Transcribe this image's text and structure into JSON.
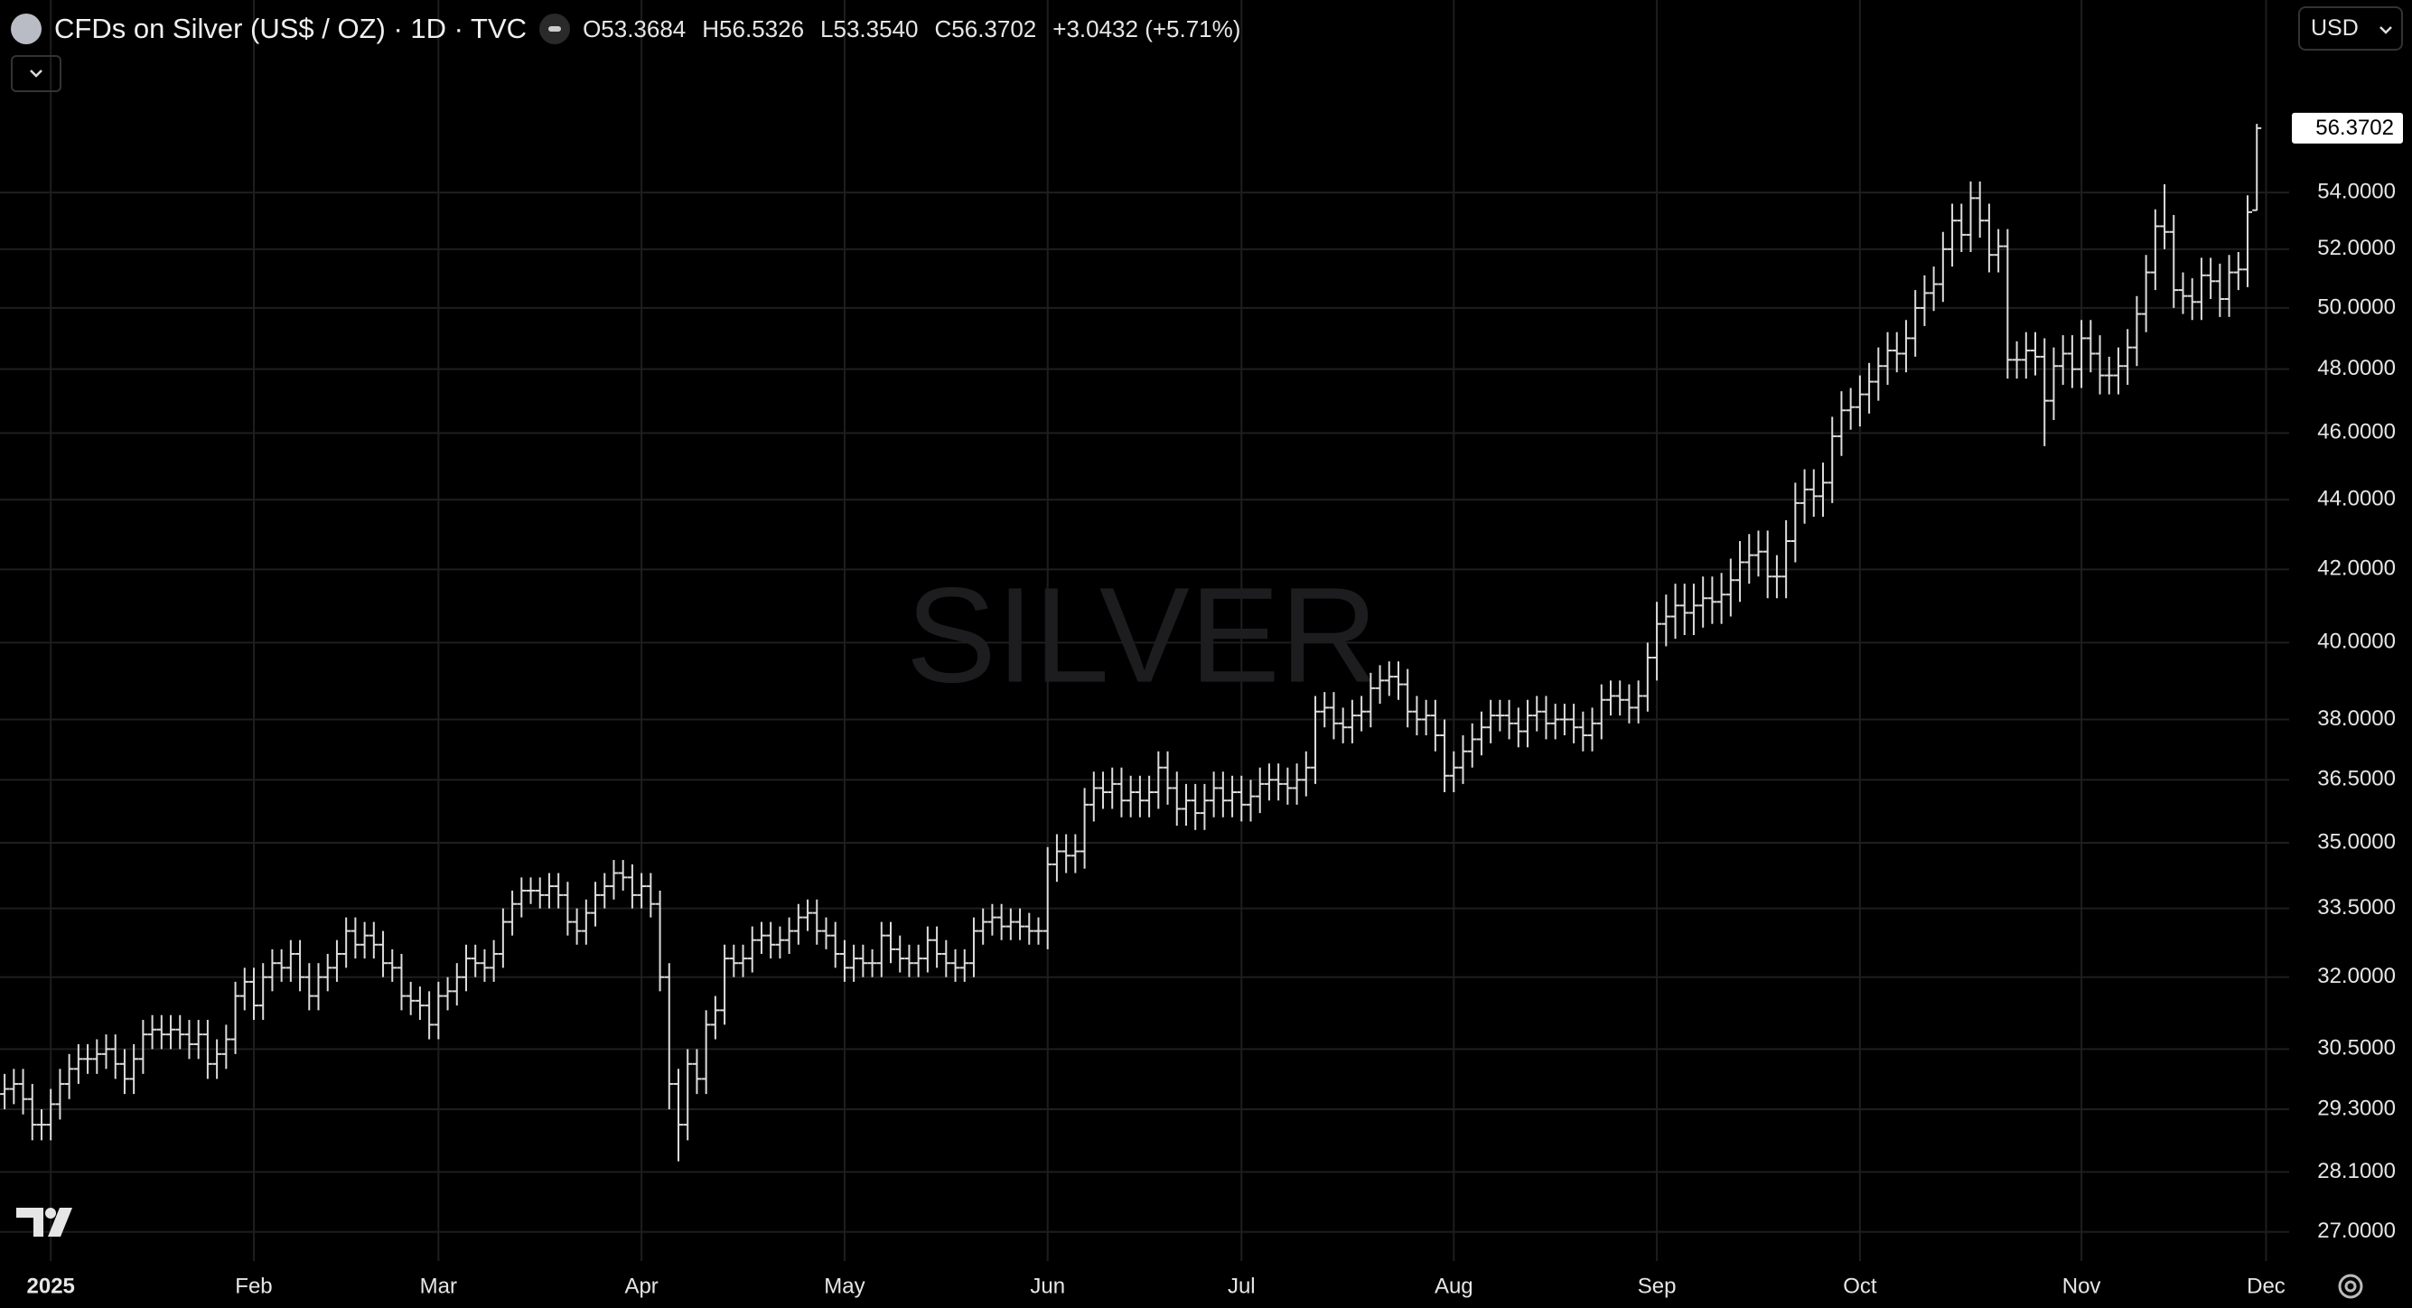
{
  "header": {
    "title": "CFDs on Silver (US$ / OZ) · 1D · TVC",
    "ohlc": [
      "O53.3684",
      "H56.5326",
      "L53.3540",
      "C56.3702"
    ],
    "change": "+3.0432 (+5.71%)",
    "currency": "USD"
  },
  "chart_data": {
    "type": "ohlc",
    "watermark": "SILVER",
    "color": "#dcdcdc",
    "grid": true,
    "log_scale": true,
    "xlim": [
      -0.5,
      247.5
    ],
    "xticks": [
      {
        "value": 5,
        "label": "2025"
      },
      {
        "value": 27,
        "label": "Feb"
      },
      {
        "value": 47,
        "label": "Mar"
      },
      {
        "value": 69,
        "label": "Apr"
      },
      {
        "value": 91,
        "label": "May"
      },
      {
        "value": 113,
        "label": "Jun"
      },
      {
        "value": 134,
        "label": "Jul"
      },
      {
        "value": 157,
        "label": "Aug"
      },
      {
        "value": 179,
        "label": "Sep"
      },
      {
        "value": 201,
        "label": "Oct"
      },
      {
        "value": 225,
        "label": "Nov"
      },
      {
        "value": 245,
        "label": "Dec"
      }
    ],
    "ylim": [
      26.48,
      61.4
    ],
    "yticks": [
      {
        "value": 27,
        "label": "27.0000"
      },
      {
        "value": 28.1,
        "label": "28.1000"
      },
      {
        "value": 29.3,
        "label": "29.3000"
      },
      {
        "value": 30.5,
        "label": "30.5000"
      },
      {
        "value": 32,
        "label": "32.0000"
      },
      {
        "value": 33.5,
        "label": "33.5000"
      },
      {
        "value": 35,
        "label": "35.0000"
      },
      {
        "value": 36.5,
        "label": "36.5000"
      },
      {
        "value": 38,
        "label": "38.0000"
      },
      {
        "value": 40,
        "label": "40.0000"
      },
      {
        "value": 42,
        "label": "42.0000"
      },
      {
        "value": 44,
        "label": "44.0000"
      },
      {
        "value": 46,
        "label": "46.0000"
      },
      {
        "value": 48,
        "label": "48.0000"
      },
      {
        "value": 50,
        "label": "50.0000"
      },
      {
        "value": 52,
        "label": "52.0000"
      },
      {
        "value": 54,
        "label": "54.0000"
      }
    ],
    "open": [
      29.6,
      29.7,
      29.8,
      29.5,
      29.0,
      29.0,
      29.4,
      29.8,
      30.1,
      30.3,
      30.3,
      30.4,
      30.5,
      30.2,
      29.9,
      30.3,
      30.8,
      30.9,
      30.8,
      30.9,
      30.8,
      30.6,
      30.8,
      30.2,
      30.4,
      30.7,
      31.6,
      31.9,
      31.4,
      32.0,
      32.3,
      32.2,
      32.5,
      32.0,
      31.6,
      32.0,
      32.2,
      32.5,
      33.0,
      32.7,
      32.9,
      32.7,
      32.3,
      32.2,
      31.6,
      31.5,
      31.4,
      31.0,
      31.6,
      31.7,
      32.0,
      32.4,
      32.3,
      32.2,
      32.5,
      33.2,
      33.6,
      33.9,
      33.9,
      33.8,
      34.0,
      33.8,
      33.2,
      33.0,
      33.4,
      33.8,
      34.0,
      34.3,
      34.2,
      33.8,
      34.0,
      33.6,
      32.0,
      29.8,
      29.0,
      30.2,
      29.9,
      31.0,
      31.3,
      32.4,
      32.3,
      32.4,
      32.8,
      32.9,
      32.7,
      32.8,
      33.0,
      33.3,
      33.4,
      33.0,
      32.9,
      32.5,
      32.2,
      32.4,
      32.3,
      32.3,
      32.9,
      32.6,
      32.4,
      32.3,
      32.4,
      32.8,
      32.5,
      32.3,
      32.2,
      32.3,
      33.0,
      33.2,
      33.3,
      33.1,
      33.2,
      33.1,
      33.0,
      33.0,
      34.5,
      34.8,
      34.7,
      34.8,
      35.9,
      36.3,
      36.2,
      36.4,
      36.0,
      36.2,
      36.0,
      36.2,
      36.8,
      36.3,
      35.8,
      36.0,
      35.7,
      36.0,
      36.3,
      36.0,
      36.2,
      35.9,
      36.1,
      36.4,
      36.5,
      36.4,
      36.3,
      36.5,
      36.8,
      38.2,
      38.3,
      37.9,
      37.8,
      38.1,
      38.2,
      38.8,
      39.0,
      39.1,
      38.9,
      38.2,
      38.0,
      38.1,
      37.6,
      36.6,
      36.8,
      37.2,
      37.5,
      37.8,
      38.1,
      38.1,
      37.9,
      37.7,
      38.1,
      38.2,
      37.9,
      38.0,
      38.0,
      37.8,
      37.6,
      37.9,
      38.5,
      38.6,
      38.5,
      38.3,
      38.6,
      39.6,
      40.5,
      40.7,
      41.0,
      40.8,
      41.0,
      41.2,
      41.1,
      41.3,
      41.7,
      42.2,
      42.4,
      42.5,
      41.8,
      41.8,
      42.8,
      43.9,
      44.3,
      44.1,
      44.5,
      45.9,
      46.7,
      46.8,
      47.2,
      47.6,
      48.1,
      48.6,
      48.5,
      49.0,
      50.0,
      50.5,
      50.8,
      52.0,
      53.0,
      52.5,
      53.8,
      53.0,
      51.8,
      52.1,
      48.3,
      48.3,
      48.6,
      48.4,
      47.0,
      48.1,
      48.5,
      48.0,
      49.0,
      48.5,
      47.8,
      47.8,
      48.1,
      48.7,
      49.8,
      51.2,
      52.8,
      52.6,
      50.6,
      50.4,
      50.2,
      51.1,
      50.9,
      50.3,
      51.2,
      51.3,
      53.3684
    ],
    "high": [
      30.0,
      30.1,
      30.1,
      29.8,
      29.3,
      29.7,
      30.1,
      30.4,
      30.6,
      30.6,
      30.7,
      30.8,
      30.8,
      30.5,
      30.6,
      31.1,
      31.2,
      31.2,
      31.2,
      31.2,
      31.1,
      31.1,
      31.1,
      30.7,
      31.0,
      31.9,
      32.2,
      32.2,
      32.3,
      32.6,
      32.6,
      32.8,
      32.8,
      32.3,
      32.3,
      32.5,
      32.8,
      33.3,
      33.3,
      33.2,
      33.2,
      33.0,
      32.6,
      32.5,
      31.9,
      31.8,
      31.7,
      31.9,
      32.0,
      32.3,
      32.7,
      32.7,
      32.6,
      32.8,
      33.5,
      33.9,
      34.2,
      34.2,
      34.2,
      34.3,
      34.3,
      34.1,
      33.5,
      33.7,
      34.1,
      34.3,
      34.6,
      34.6,
      34.5,
      34.3,
      34.3,
      33.9,
      32.3,
      30.1,
      30.5,
      30.5,
      31.3,
      31.6,
      32.7,
      32.7,
      32.7,
      33.1,
      33.2,
      33.2,
      33.1,
      33.3,
      33.6,
      33.7,
      33.7,
      33.3,
      33.2,
      32.8,
      32.7,
      32.7,
      32.6,
      33.2,
      33.2,
      32.9,
      32.7,
      32.7,
      33.1,
      33.1,
      32.8,
      32.6,
      32.6,
      33.3,
      33.5,
      33.6,
      33.6,
      33.5,
      33.5,
      33.4,
      33.3,
      34.9,
      35.2,
      35.2,
      35.2,
      36.3,
      36.7,
      36.7,
      36.8,
      36.8,
      36.6,
      36.6,
      36.6,
      37.2,
      37.2,
      36.7,
      36.4,
      36.4,
      36.4,
      36.7,
      36.7,
      36.6,
      36.6,
      36.5,
      36.8,
      36.9,
      36.9,
      36.8,
      36.9,
      37.2,
      38.6,
      38.7,
      38.7,
      38.3,
      38.5,
      38.6,
      39.2,
      39.4,
      39.5,
      39.5,
      39.3,
      38.6,
      38.5,
      38.5,
      38.0,
      37.2,
      37.6,
      37.9,
      38.2,
      38.5,
      38.5,
      38.5,
      38.3,
      38.5,
      38.6,
      38.6,
      38.4,
      38.4,
      38.4,
      38.2,
      38.3,
      38.9,
      39.0,
      39.0,
      38.9,
      39.0,
      40.0,
      41.1,
      41.3,
      41.6,
      41.6,
      41.6,
      41.8,
      41.8,
      41.9,
      42.3,
      42.8,
      43.0,
      43.1,
      43.1,
      42.4,
      43.4,
      44.5,
      44.9,
      44.9,
      45.1,
      46.5,
      47.3,
      47.4,
      47.8,
      48.2,
      48.7,
      49.2,
      49.2,
      49.6,
      50.6,
      51.1,
      51.4,
      52.6,
      53.6,
      53.6,
      54.4,
      54.4,
      53.6,
      52.7,
      52.7,
      48.9,
      49.2,
      49.2,
      49.0,
      48.7,
      49.1,
      49.1,
      49.6,
      49.6,
      49.1,
      48.4,
      48.7,
      49.3,
      50.4,
      51.8,
      53.4,
      54.3,
      53.2,
      51.2,
      51.0,
      51.7,
      51.7,
      51.5,
      51.8,
      51.9,
      53.9,
      56.5326
    ],
    "low": [
      29.3,
      29.4,
      29.2,
      28.7,
      28.7,
      28.7,
      29.1,
      29.5,
      29.8,
      30.0,
      30.0,
      30.1,
      29.9,
      29.6,
      29.6,
      30.0,
      30.5,
      30.5,
      30.5,
      30.5,
      30.3,
      30.3,
      29.9,
      29.9,
      30.1,
      30.4,
      31.3,
      31.1,
      31.1,
      31.7,
      31.9,
      31.9,
      31.7,
      31.3,
      31.3,
      31.7,
      31.9,
      32.2,
      32.4,
      32.4,
      32.4,
      32.0,
      31.9,
      31.3,
      31.2,
      31.1,
      30.7,
      30.7,
      31.3,
      31.4,
      31.7,
      32.0,
      31.9,
      31.9,
      32.2,
      32.9,
      33.3,
      33.6,
      33.5,
      33.5,
      33.5,
      32.9,
      32.7,
      32.7,
      33.1,
      33.5,
      33.7,
      33.9,
      33.5,
      33.5,
      33.3,
      31.7,
      29.3,
      28.3,
      28.7,
      29.6,
      29.6,
      30.7,
      31.0,
      32.0,
      32.0,
      32.1,
      32.5,
      32.4,
      32.4,
      32.5,
      32.7,
      33.0,
      32.7,
      32.6,
      32.2,
      31.9,
      31.9,
      32.0,
      32.0,
      32.0,
      32.3,
      32.1,
      32.0,
      32.0,
      32.1,
      32.2,
      32.0,
      31.9,
      31.9,
      32.0,
      32.7,
      32.9,
      32.8,
      32.8,
      32.8,
      32.7,
      32.7,
      32.6,
      34.1,
      34.3,
      34.3,
      34.4,
      35.5,
      35.8,
      35.8,
      35.6,
      35.6,
      35.6,
      35.6,
      35.8,
      35.9,
      35.4,
      35.4,
      35.3,
      35.3,
      35.6,
      35.6,
      35.6,
      35.5,
      35.5,
      35.7,
      36.0,
      36.0,
      35.9,
      35.9,
      36.1,
      36.4,
      37.8,
      37.5,
      37.4,
      37.4,
      37.7,
      37.8,
      38.4,
      38.6,
      38.5,
      37.8,
      37.6,
      37.6,
      37.2,
      36.2,
      36.2,
      36.4,
      36.8,
      37.1,
      37.4,
      37.7,
      37.5,
      37.3,
      37.3,
      37.7,
      37.5,
      37.5,
      37.6,
      37.4,
      37.2,
      37.2,
      37.5,
      38.1,
      38.1,
      37.9,
      37.9,
      38.2,
      39.0,
      39.9,
      40.1,
      40.2,
      40.2,
      40.4,
      40.5,
      40.5,
      40.7,
      41.1,
      41.6,
      41.8,
      41.2,
      41.2,
      41.2,
      42.2,
      43.3,
      43.5,
      43.5,
      43.9,
      45.3,
      46.1,
      46.2,
      46.6,
      47.0,
      47.5,
      47.9,
      47.9,
      48.4,
      49.4,
      49.9,
      50.2,
      51.4,
      51.9,
      51.9,
      52.4,
      51.2,
      51.2,
      47.7,
      47.7,
      47.7,
      47.8,
      45.6,
      46.4,
      47.5,
      47.4,
      47.4,
      47.9,
      47.2,
      47.2,
      47.2,
      47.5,
      48.1,
      49.2,
      50.6,
      52.0,
      50.0,
      49.8,
      49.6,
      49.6,
      50.3,
      49.7,
      49.7,
      50.6,
      50.7,
      53.354
    ],
    "close": [
      29.7,
      29.8,
      29.5,
      29.0,
      29.0,
      29.4,
      29.8,
      30.1,
      30.3,
      30.3,
      30.4,
      30.5,
      30.2,
      29.9,
      30.3,
      30.8,
      30.9,
      30.8,
      30.9,
      30.8,
      30.6,
      30.8,
      30.2,
      30.4,
      30.7,
      31.6,
      31.9,
      31.4,
      32.0,
      32.3,
      32.2,
      32.5,
      32.0,
      31.6,
      32.0,
      32.2,
      32.5,
      33.0,
      32.7,
      32.9,
      32.7,
      32.3,
      32.2,
      31.6,
      31.5,
      31.4,
      31.0,
      31.6,
      31.7,
      32.0,
      32.4,
      32.3,
      32.2,
      32.5,
      33.2,
      33.6,
      33.9,
      33.9,
      33.8,
      34.0,
      33.8,
      33.2,
      33.0,
      33.4,
      33.8,
      34.0,
      34.3,
      34.2,
      33.8,
      34.0,
      33.6,
      32.0,
      29.8,
      29.0,
      30.2,
      29.9,
      31.0,
      31.3,
      32.4,
      32.3,
      32.4,
      32.8,
      32.9,
      32.7,
      32.8,
      33.0,
      33.3,
      33.4,
      33.0,
      32.9,
      32.5,
      32.2,
      32.4,
      32.3,
      32.3,
      32.9,
      32.6,
      32.4,
      32.3,
      32.4,
      32.8,
      32.5,
      32.3,
      32.2,
      32.3,
      33.0,
      33.2,
      33.3,
      33.1,
      33.2,
      33.1,
      33.0,
      33.0,
      34.5,
      34.8,
      34.7,
      34.8,
      35.9,
      36.3,
      36.2,
      36.4,
      36.0,
      36.2,
      36.0,
      36.2,
      36.8,
      36.3,
      35.8,
      36.0,
      35.7,
      36.0,
      36.3,
      36.0,
      36.2,
      35.9,
      36.1,
      36.4,
      36.5,
      36.4,
      36.3,
      36.5,
      36.8,
      38.2,
      38.3,
      37.9,
      37.8,
      38.1,
      38.2,
      38.8,
      39.0,
      39.1,
      38.9,
      38.2,
      38.0,
      38.1,
      37.6,
      36.6,
      36.8,
      37.2,
      37.5,
      37.8,
      38.1,
      38.1,
      37.9,
      37.7,
      38.1,
      38.2,
      37.9,
      38.0,
      38.0,
      37.8,
      37.6,
      37.9,
      38.5,
      38.6,
      38.5,
      38.3,
      38.6,
      39.6,
      40.5,
      40.7,
      41.0,
      40.8,
      41.0,
      41.2,
      41.1,
      41.3,
      41.7,
      42.2,
      42.4,
      42.5,
      41.8,
      41.8,
      42.8,
      43.9,
      44.3,
      44.1,
      44.5,
      45.9,
      46.7,
      46.8,
      47.2,
      47.6,
      48.1,
      48.6,
      48.5,
      49.0,
      50.0,
      50.5,
      50.8,
      52.0,
      53.0,
      52.5,
      53.8,
      53.0,
      51.8,
      52.1,
      48.3,
      48.3,
      48.6,
      48.4,
      47.0,
      48.1,
      48.5,
      48.0,
      49.0,
      48.5,
      47.8,
      47.8,
      48.1,
      48.7,
      49.8,
      51.2,
      52.8,
      52.6,
      50.6,
      50.4,
      50.2,
      51.1,
      50.9,
      50.3,
      51.2,
      51.3,
      53.3,
      56.3702
    ]
  }
}
